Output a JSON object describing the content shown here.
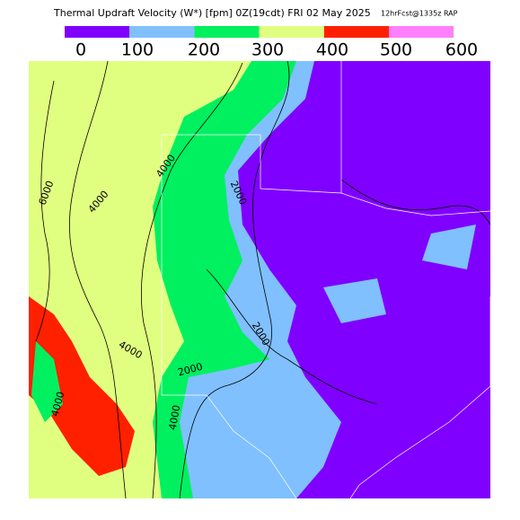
{
  "header": {
    "title": "Thermal Updraft Velocity (W*) [fpm] 0Z(19cdt) FRI 02 May 2025",
    "model": "12hrFcst@1335z RAP"
  },
  "legend": {
    "ticks": [
      0,
      100,
      200,
      300,
      400,
      500,
      600
    ],
    "colors": [
      "#7f00ff",
      "#80c0ff",
      "#00f060",
      "#e0ff80",
      "#ff2000",
      "#ff80ff"
    ]
  },
  "map": {
    "contour_labels": [
      "6000",
      "4000",
      "4000",
      "2000",
      "2000",
      "2000",
      "4000",
      "4000",
      "4000"
    ]
  }
}
